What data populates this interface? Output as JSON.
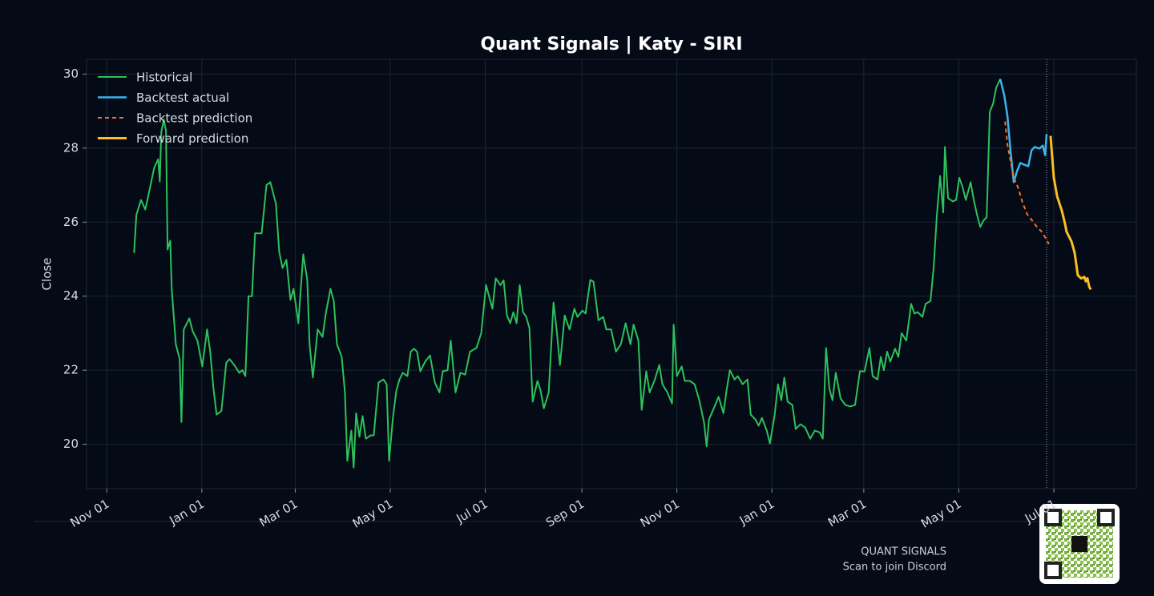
{
  "chart_data": {
    "type": "line",
    "title": "Quant Signals | Katy - SIRI",
    "ylabel": "Close",
    "footer_title": "QUANT SIGNALS",
    "footer_subtitle": "Scan to join Discord",
    "grid": true,
    "legend": "upper left",
    "xlim": [
      -13,
      661
    ],
    "ylim": [
      18.8,
      30.4
    ],
    "yticks": [
      20,
      22,
      24,
      26,
      28,
      30
    ],
    "xticks": [
      {
        "value": 0,
        "label": "Nov 01"
      },
      {
        "value": 61,
        "label": "Jan 01"
      },
      {
        "value": 121,
        "label": "Mar 01"
      },
      {
        "value": 182,
        "label": "May 01"
      },
      {
        "value": 243,
        "label": "Jul 01"
      },
      {
        "value": 305,
        "label": "Sep 01"
      },
      {
        "value": 366,
        "label": "Nov 01"
      },
      {
        "value": 427,
        "label": "Jan 01"
      },
      {
        "value": 486,
        "label": "Mar 01"
      },
      {
        "value": 547,
        "label": "May 01"
      },
      {
        "value": 608,
        "label": "Jul 01"
      }
    ],
    "vline": 603.4,
    "series": [
      {
        "name": "Historical",
        "color": "#2cc25c",
        "style": "solid",
        "width": 2,
        "x": [
          17.5,
          19,
          22,
          24.7,
          26.8,
          30.4,
          33,
          34,
          35,
          36.6,
          38,
          39,
          40.7,
          41.7,
          44.3,
          46.8,
          47.9,
          49.4,
          53,
          55.1,
          58.2,
          61.3,
          64.4,
          66.4,
          68.5,
          70.5,
          73.6,
          76.7,
          78.8,
          81.9,
          85,
          87,
          89,
          91,
          93.2,
          95.2,
          97.3,
          99.4,
          102.5,
          105,
          108.6,
          110.7,
          112.8,
          115.3,
          117.9,
          119.9,
          123,
          126.1,
          128.7,
          130.2,
          132.3,
          135.4,
          138.5,
          140.5,
          143.6,
          145.7,
          147.8,
          150.8,
          152.9,
          154.4,
          157,
          158.5,
          160.1,
          162.2,
          164.2,
          166.3,
          169.4,
          171.4,
          174.5,
          177.6,
          179.7,
          181.2,
          183.8,
          185.9,
          187.9,
          190,
          193,
          195.1,
          197.2,
          199.2,
          201.3,
          204.4,
          207.5,
          210.6,
          213.6,
          215.7,
          218.8,
          220.8,
          223.9,
          227,
          230.1,
          233.2,
          237.3,
          240.4,
          243.5,
          247.6,
          249.7,
          252.7,
          254.8,
          256.9,
          259,
          261,
          263.1,
          265.1,
          267.2,
          269.3,
          271.3,
          273.4,
          276.5,
          278.5,
          280.6,
          283.7,
          286.8,
          288.9,
          290.9,
          294,
          297.1,
          300.2,
          302.2,
          305.3,
          307.4,
          310.4,
          312.5,
          315.6,
          318.7,
          320.7,
          323.8,
          326.9,
          330,
          333.1,
          336.2,
          338.2,
          341.3,
          343.4,
          346.4,
          348.5,
          351.6,
          354.7,
          356.7,
          359.9,
          362.9,
          363.9,
          366,
          369.1,
          371.1,
          374.3,
          377.4,
          380.4,
          383.5,
          385.1,
          386.6,
          389.7,
          392.8,
          395.9,
          397.9,
          400,
          403.1,
          405.1,
          408.2,
          411.3,
          413.4,
          416.4,
          418.5,
          420.6,
          423.7,
          425.7,
          428.8,
          430.9,
          433,
          435,
          437.1,
          440.2,
          442.3,
          445.3,
          448.4,
          451.6,
          454.6,
          457.7,
          459.7,
          461.8,
          463.9,
          465.9,
          468,
          471.1,
          474.2,
          477.3,
          480.4,
          483.5,
          486.5,
          489.6,
          491.7,
          494.8,
          496.9,
          498.9,
          501,
          503,
          506.1,
          508.2,
          510.3,
          513.3,
          516.4,
          518.5,
          520.6,
          523.7,
          525.7,
          528.8,
          530.9,
          532.9,
          535,
          537,
          538.1,
          540.1,
          543.2,
          545.3,
          547.3,
          549.4,
          551.5,
          554.6,
          556.6,
          558.7,
          560.8,
          562.8,
          564.9,
          566.9,
          569,
          571,
          573.6
        ],
        "values": [
          25.17,
          26.2,
          26.6,
          26.34,
          26.75,
          27.47,
          27.7,
          27.1,
          28.44,
          28.77,
          28.46,
          25.26,
          25.5,
          24.2,
          22.7,
          22.3,
          20.6,
          23.1,
          23.4,
          23.05,
          22.8,
          22.1,
          23.1,
          22.5,
          21.5,
          20.8,
          20.9,
          22.2,
          22.3,
          22.14,
          21.93,
          22.0,
          21.84,
          24.0,
          24.0,
          25.7,
          25.7,
          25.7,
          27.0,
          27.08,
          26.5,
          25.2,
          24.76,
          24.98,
          23.9,
          24.2,
          23.27,
          25.13,
          24.44,
          22.7,
          21.8,
          23.1,
          22.9,
          23.5,
          24.2,
          23.87,
          22.7,
          22.36,
          21.4,
          19.55,
          20.37,
          19.37,
          20.84,
          20.2,
          20.76,
          20.15,
          20.24,
          20.24,
          21.67,
          21.75,
          21.62,
          19.55,
          20.76,
          21.45,
          21.75,
          21.93,
          21.84,
          22.5,
          22.58,
          22.5,
          21.97,
          22.23,
          22.4,
          21.67,
          21.4,
          21.97,
          22.0,
          22.8,
          21.4,
          21.93,
          21.88,
          22.5,
          22.6,
          23.0,
          24.3,
          23.66,
          24.48,
          24.3,
          24.43,
          23.48,
          23.27,
          23.57,
          23.27,
          24.3,
          23.57,
          23.44,
          23.14,
          21.15,
          21.71,
          21.45,
          20.97,
          21.4,
          23.83,
          23.05,
          22.14,
          23.48,
          23.1,
          23.66,
          23.44,
          23.61,
          23.53,
          24.44,
          24.39,
          23.35,
          23.44,
          23.1,
          23.1,
          22.5,
          22.7,
          23.27,
          22.7,
          23.23,
          22.8,
          20.93,
          21.97,
          21.4,
          21.71,
          22.14,
          21.62,
          21.4,
          21.1,
          23.23,
          21.84,
          22.1,
          21.71,
          21.71,
          21.62,
          21.19,
          20.58,
          19.94,
          20.67,
          20.97,
          21.28,
          20.84,
          21.45,
          22.0,
          21.75,
          21.84,
          21.62,
          21.75,
          20.8,
          20.67,
          20.5,
          20.71,
          20.37,
          20.02,
          20.8,
          21.62,
          21.19,
          21.8,
          21.15,
          21.06,
          20.41,
          20.54,
          20.45,
          20.15,
          20.37,
          20.32,
          20.15,
          22.6,
          21.5,
          21.19,
          21.93,
          21.24,
          21.06,
          21.02,
          21.06,
          21.97,
          21.97,
          22.6,
          21.84,
          21.75,
          22.36,
          22.0,
          22.5,
          22.23,
          22.58,
          22.36,
          23.0,
          22.8,
          23.79,
          23.53,
          23.57,
          23.44,
          23.79,
          23.87,
          24.78,
          26.17,
          27.25,
          26.26,
          28.03,
          26.65,
          26.56,
          26.6,
          27.2,
          26.95,
          26.6,
          27.08,
          26.6,
          26.2,
          25.87,
          26.04,
          26.13,
          28.98,
          29.2,
          29.63,
          29.87
        ]
      },
      {
        "name": "Backtest actual",
        "color": "#3bb4ee",
        "style": "solid",
        "width": 2.5,
        "x": [
          573.6,
          576.2,
          578.2,
          580.3,
          582.3,
          584.4,
          586.5,
          588.5,
          591.6,
          593.7,
          595.7,
          598.8,
          600.9,
          602.4,
          603.4
        ],
        "values": [
          29.87,
          29.42,
          28.87,
          27.9,
          27.08,
          27.38,
          27.6,
          27.56,
          27.51,
          27.94,
          28.03,
          27.99,
          28.07,
          27.81,
          28.38
        ]
      },
      {
        "name": "Backtest prediction",
        "color": "#f37321",
        "style": "dashed",
        "width": 2,
        "x": [
          576.7,
          578.2,
          582.3,
          584.9,
          588,
          591.1,
          594.2,
          597.2,
          600.3,
          603.4,
          604.9
        ],
        "values": [
          28.72,
          28.1,
          27.2,
          26.95,
          26.52,
          26.2,
          26.04,
          25.87,
          25.74,
          25.52,
          25.41
        ]
      },
      {
        "name": "Forward prediction",
        "color": "#f9c022",
        "style": "solid",
        "width": 3,
        "x": [
          605.9,
          608,
          610.1,
          613.2,
          615.2,
          616.2,
          619.3,
          621.4,
          623.4,
          625.5,
          627.6,
          628.6,
          629.6,
          630.7,
          631.7
        ],
        "values": [
          28.33,
          27.2,
          26.7,
          26.3,
          25.95,
          25.74,
          25.48,
          25.17,
          24.57,
          24.48,
          24.52,
          24.4,
          24.48,
          24.26,
          24.18
        ]
      }
    ]
  }
}
